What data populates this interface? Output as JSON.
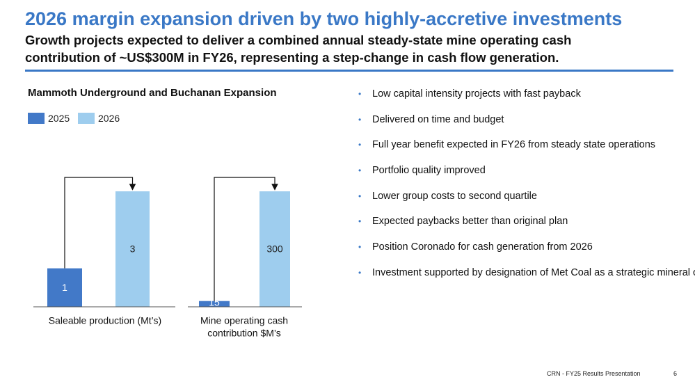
{
  "header": {
    "title": "2026 margin expansion driven by two highly-accretive investments",
    "subtitle": [
      "Growth projects expected to deliver a combined annual steady-state mine operating cash",
      "contribution of ~US$300M in FY26, representing a step-change in cash flow generation."
    ]
  },
  "panel": {
    "title": "Mammoth Underground and Buchanan Expansion",
    "legend": [
      {
        "name": "2025",
        "color": "#4279c8"
      },
      {
        "name": "2026",
        "color": "#9ecdee"
      }
    ]
  },
  "chart_data": [
    {
      "type": "bar",
      "xlabel": [
        "Saleable production (Mt’s)"
      ],
      "values": [
        1,
        3
      ],
      "label_colors": [
        "#ffffff",
        "#222222"
      ]
    },
    {
      "type": "bar",
      "xlabel": [
        "Mine operating cash",
        "contribution $M’s"
      ],
      "values": [
        15,
        300
      ],
      "label_colors": [
        "#ffffff",
        "#222222"
      ]
    }
  ],
  "bullets": [
    "Low capital intensity projects with fast payback",
    "Delivered on time and budget",
    "Full year benefit expected in FY26 from steady state operations",
    "Portfolio quality improved",
    "Lower group costs to second quartile",
    "Expected paybacks better than original plan",
    "Position Coronado for cash generation from 2026",
    "Investment supported by designation of Met Coal as a strategic mineral or critical in both the U.S. and India"
  ],
  "footer": {
    "text": "CRN - FY25 Results Presentation",
    "page": "6"
  }
}
